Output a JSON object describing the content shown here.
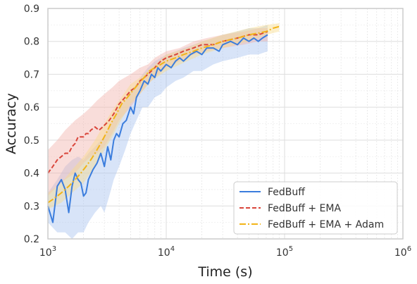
{
  "chart_data": {
    "type": "line",
    "title": "",
    "xlabel": "Time (s)",
    "ylabel": "Accuracy",
    "xscale": "log",
    "xlim": [
      1000,
      1000000
    ],
    "ylim": [
      0.2,
      0.9
    ],
    "x_ticks": [
      {
        "value": 1000,
        "base": "10",
        "exp": "3"
      },
      {
        "value": 10000,
        "base": "10",
        "exp": "4"
      },
      {
        "value": 100000,
        "base": "10",
        "exp": "5"
      },
      {
        "value": 1000000,
        "base": "10",
        "exp": "6"
      }
    ],
    "y_ticks": [
      "0.2",
      "0.3",
      "0.4",
      "0.5",
      "0.6",
      "0.7",
      "0.8",
      "0.9"
    ],
    "grid": true,
    "legend_position": "bottom-right",
    "series": [
      {
        "name": "FedBuff",
        "color": "#3b7ddd",
        "style": "solid",
        "band_color": "#a8c4f0",
        "points": [
          [
            1000,
            0.3
          ],
          [
            1100,
            0.25
          ],
          [
            1200,
            0.36
          ],
          [
            1300,
            0.38
          ],
          [
            1400,
            0.35
          ],
          [
            1500,
            0.28
          ],
          [
            1600,
            0.36
          ],
          [
            1700,
            0.4
          ],
          [
            1800,
            0.38
          ],
          [
            1900,
            0.37
          ],
          [
            2000,
            0.33
          ],
          [
            2100,
            0.34
          ],
          [
            2200,
            0.38
          ],
          [
            2400,
            0.41
          ],
          [
            2600,
            0.43
          ],
          [
            2800,
            0.46
          ],
          [
            3000,
            0.42
          ],
          [
            3200,
            0.48
          ],
          [
            3400,
            0.44
          ],
          [
            3600,
            0.5
          ],
          [
            3800,
            0.52
          ],
          [
            4000,
            0.51
          ],
          [
            4300,
            0.55
          ],
          [
            4600,
            0.56
          ],
          [
            5000,
            0.6
          ],
          [
            5300,
            0.58
          ],
          [
            5600,
            0.63
          ],
          [
            6000,
            0.65
          ],
          [
            6500,
            0.68
          ],
          [
            7000,
            0.67
          ],
          [
            7500,
            0.7
          ],
          [
            8000,
            0.69
          ],
          [
            8500,
            0.72
          ],
          [
            9000,
            0.71
          ],
          [
            10000,
            0.73
          ],
          [
            11000,
            0.72
          ],
          [
            12000,
            0.74
          ],
          [
            13000,
            0.75
          ],
          [
            14000,
            0.74
          ],
          [
            16000,
            0.76
          ],
          [
            18000,
            0.77
          ],
          [
            20000,
            0.76
          ],
          [
            22000,
            0.78
          ],
          [
            25000,
            0.78
          ],
          [
            28000,
            0.77
          ],
          [
            30000,
            0.79
          ],
          [
            35000,
            0.8
          ],
          [
            40000,
            0.79
          ],
          [
            45000,
            0.81
          ],
          [
            50000,
            0.8
          ],
          [
            55000,
            0.81
          ],
          [
            60000,
            0.8
          ],
          [
            65000,
            0.81
          ],
          [
            72000,
            0.82
          ]
        ],
        "band": [
          [
            1000,
            0.25,
            0.34
          ],
          [
            1200,
            0.22,
            0.38
          ],
          [
            1400,
            0.22,
            0.42
          ],
          [
            1600,
            0.2,
            0.44
          ],
          [
            1800,
            0.22,
            0.45
          ],
          [
            2000,
            0.22,
            0.44
          ],
          [
            2200,
            0.25,
            0.46
          ],
          [
            2500,
            0.28,
            0.48
          ],
          [
            2800,
            0.3,
            0.5
          ],
          [
            3000,
            0.28,
            0.51
          ],
          [
            3300,
            0.33,
            0.54
          ],
          [
            3600,
            0.38,
            0.57
          ],
          [
            4000,
            0.42,
            0.6
          ],
          [
            4500,
            0.47,
            0.62
          ],
          [
            5000,
            0.52,
            0.65
          ],
          [
            5600,
            0.56,
            0.67
          ],
          [
            6300,
            0.6,
            0.7
          ],
          [
            7000,
            0.6,
            0.72
          ],
          [
            8000,
            0.63,
            0.74
          ],
          [
            9000,
            0.64,
            0.75
          ],
          [
            10000,
            0.66,
            0.76
          ],
          [
            12000,
            0.68,
            0.77
          ],
          [
            14000,
            0.69,
            0.78
          ],
          [
            17000,
            0.71,
            0.79
          ],
          [
            20000,
            0.71,
            0.8
          ],
          [
            25000,
            0.73,
            0.81
          ],
          [
            30000,
            0.74,
            0.82
          ],
          [
            40000,
            0.75,
            0.83
          ],
          [
            50000,
            0.76,
            0.84
          ],
          [
            60000,
            0.76,
            0.84
          ],
          [
            72000,
            0.77,
            0.85
          ]
        ]
      },
      {
        "name": "FedBuff + EMA",
        "color": "#d9453a",
        "style": "dashed",
        "band_color": "#f2b4ae",
        "points": [
          [
            1000,
            0.4
          ],
          [
            1100,
            0.42
          ],
          [
            1200,
            0.44
          ],
          [
            1300,
            0.45
          ],
          [
            1400,
            0.46
          ],
          [
            1500,
            0.46
          ],
          [
            1600,
            0.48
          ],
          [
            1700,
            0.49
          ],
          [
            1800,
            0.51
          ],
          [
            1900,
            0.51
          ],
          [
            2000,
            0.51
          ],
          [
            2100,
            0.52
          ],
          [
            2200,
            0.52
          ],
          [
            2300,
            0.53
          ],
          [
            2500,
            0.54
          ],
          [
            2700,
            0.53
          ],
          [
            2900,
            0.54
          ],
          [
            3100,
            0.55
          ],
          [
            3300,
            0.56
          ],
          [
            3600,
            0.58
          ],
          [
            4000,
            0.61
          ],
          [
            4500,
            0.63
          ],
          [
            5000,
            0.65
          ],
          [
            5500,
            0.66
          ],
          [
            6000,
            0.68
          ],
          [
            6500,
            0.69
          ],
          [
            7000,
            0.7
          ],
          [
            8000,
            0.72
          ],
          [
            9000,
            0.74
          ],
          [
            10000,
            0.75
          ],
          [
            12000,
            0.76
          ],
          [
            14000,
            0.77
          ],
          [
            17000,
            0.78
          ],
          [
            20000,
            0.79
          ],
          [
            25000,
            0.79
          ],
          [
            30000,
            0.8
          ],
          [
            40000,
            0.81
          ],
          [
            50000,
            0.82
          ],
          [
            60000,
            0.82
          ],
          [
            72000,
            0.83
          ]
        ],
        "band": [
          [
            1000,
            0.33,
            0.47
          ],
          [
            1200,
            0.36,
            0.5
          ],
          [
            1400,
            0.38,
            0.53
          ],
          [
            1700,
            0.4,
            0.56
          ],
          [
            2000,
            0.43,
            0.58
          ],
          [
            2300,
            0.45,
            0.6
          ],
          [
            2600,
            0.46,
            0.62
          ],
          [
            3000,
            0.48,
            0.64
          ],
          [
            3500,
            0.52,
            0.66
          ],
          [
            4000,
            0.56,
            0.68
          ],
          [
            5000,
            0.6,
            0.7
          ],
          [
            6000,
            0.64,
            0.72
          ],
          [
            7000,
            0.67,
            0.73
          ],
          [
            8000,
            0.69,
            0.75
          ],
          [
            10000,
            0.72,
            0.77
          ],
          [
            13000,
            0.74,
            0.78
          ],
          [
            17000,
            0.76,
            0.8
          ],
          [
            22000,
            0.77,
            0.81
          ],
          [
            30000,
            0.78,
            0.82
          ],
          [
            45000,
            0.79,
            0.83
          ],
          [
            60000,
            0.8,
            0.84
          ],
          [
            72000,
            0.8,
            0.84
          ]
        ]
      },
      {
        "name": "FedBuff + EMA + Adam",
        "color": "#f2b418",
        "style": "dashdot",
        "band_color": "#f9dc8c",
        "points": [
          [
            1000,
            0.31
          ],
          [
            1100,
            0.32
          ],
          [
            1200,
            0.33
          ],
          [
            1300,
            0.34
          ],
          [
            1400,
            0.35
          ],
          [
            1500,
            0.36
          ],
          [
            1700,
            0.38
          ],
          [
            1900,
            0.4
          ],
          [
            2100,
            0.42
          ],
          [
            2300,
            0.44
          ],
          [
            2500,
            0.46
          ],
          [
            2800,
            0.49
          ],
          [
            3100,
            0.52
          ],
          [
            3400,
            0.55
          ],
          [
            3800,
            0.58
          ],
          [
            4200,
            0.61
          ],
          [
            4700,
            0.63
          ],
          [
            5200,
            0.65
          ],
          [
            5800,
            0.67
          ],
          [
            6500,
            0.69
          ],
          [
            7200,
            0.71
          ],
          [
            8000,
            0.72
          ],
          [
            9000,
            0.73
          ],
          [
            10000,
            0.74
          ],
          [
            12000,
            0.75
          ],
          [
            14000,
            0.76
          ],
          [
            17000,
            0.77
          ],
          [
            20000,
            0.78
          ],
          [
            25000,
            0.79
          ],
          [
            30000,
            0.8
          ],
          [
            40000,
            0.81
          ],
          [
            50000,
            0.82
          ],
          [
            60000,
            0.825
          ],
          [
            70000,
            0.83
          ],
          [
            80000,
            0.84
          ],
          [
            90000,
            0.845
          ]
        ],
        "band": [
          [
            1000,
            0.29,
            0.34
          ],
          [
            1300,
            0.31,
            0.37
          ],
          [
            1600,
            0.34,
            0.41
          ],
          [
            2000,
            0.37,
            0.45
          ],
          [
            2500,
            0.42,
            0.5
          ],
          [
            3000,
            0.47,
            0.55
          ],
          [
            3500,
            0.51,
            0.59
          ],
          [
            4000,
            0.55,
            0.62
          ],
          [
            5000,
            0.61,
            0.67
          ],
          [
            6000,
            0.64,
            0.69
          ],
          [
            7500,
            0.68,
            0.72
          ],
          [
            10000,
            0.71,
            0.76
          ],
          [
            15000,
            0.74,
            0.78
          ],
          [
            20000,
            0.76,
            0.8
          ],
          [
            30000,
            0.78,
            0.82
          ],
          [
            50000,
            0.8,
            0.84
          ],
          [
            70000,
            0.82,
            0.85
          ],
          [
            90000,
            0.83,
            0.855
          ]
        ]
      }
    ]
  }
}
